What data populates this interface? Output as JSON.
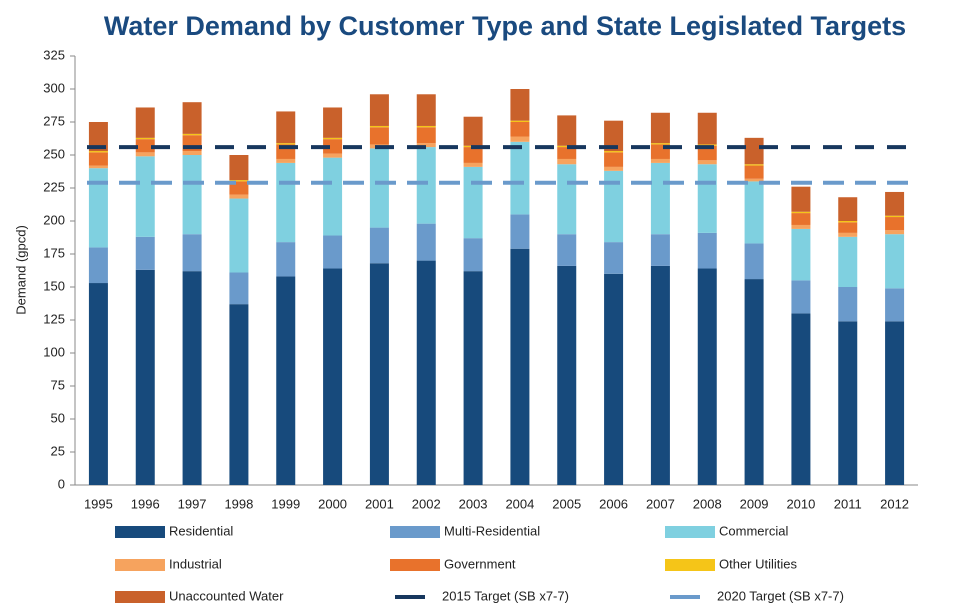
{
  "chart_data": {
    "type": "stacked_bar",
    "title": "Water Demand by Customer Type and State Legislated Targets",
    "y_label": "Demand (gpcd)",
    "categories": [
      "1995",
      "1996",
      "1997",
      "1998",
      "1999",
      "2000",
      "2001",
      "2002",
      "2003",
      "2004",
      "2005",
      "2006",
      "2007",
      "2008",
      "2009",
      "2010",
      "2011",
      "2012"
    ],
    "ylim": [
      0,
      325
    ],
    "yticks": [
      0,
      25,
      50,
      75,
      100,
      125,
      150,
      175,
      200,
      225,
      250,
      275,
      300,
      325
    ],
    "grid": false,
    "legend": "bottom",
    "series": [
      {
        "name": "Residential",
        "color": "#174a7c",
        "values": [
          153,
          163,
          162,
          137,
          158,
          164,
          168,
          170,
          162,
          179,
          166,
          160,
          166,
          164,
          156,
          130,
          124,
          124
        ]
      },
      {
        "name": "Multi-Residential",
        "color": "#6a9acb",
        "values": [
          27,
          25,
          28,
          24,
          26,
          25,
          27,
          28,
          25,
          26,
          24,
          24,
          24,
          27,
          27,
          25,
          26,
          25
        ]
      },
      {
        "name": "Commercial",
        "color": "#7fd0e0",
        "values": [
          60,
          61,
          60,
          56,
          60,
          59,
          60,
          58,
          54,
          55,
          53,
          54,
          54,
          52,
          47,
          39,
          38,
          41
        ]
      },
      {
        "name": "Industrial",
        "color": "#f6a35e",
        "values": [
          2,
          3,
          3,
          3,
          3,
          3,
          3,
          3,
          3,
          4,
          4,
          3,
          3,
          3,
          2,
          3,
          3,
          3
        ]
      },
      {
        "name": "Government",
        "color": "#e8722c",
        "values": [
          10,
          10,
          12,
          10,
          11,
          11,
          13,
          12,
          12,
          11,
          9,
          11,
          11,
          11,
          10,
          9,
          8,
          10
        ]
      },
      {
        "name": "Other Utilities",
        "color": "#f5c518",
        "values": [
          1,
          1,
          1,
          1,
          1,
          1,
          1,
          1,
          1,
          1,
          1,
          1,
          1,
          1,
          1,
          1,
          1,
          1
        ]
      },
      {
        "name": "Unaccounted Water",
        "color": "#c9612b",
        "values": [
          22,
          23,
          24,
          19,
          24,
          23,
          24,
          24,
          22,
          24,
          23,
          23,
          23,
          24,
          20,
          19,
          18,
          18
        ]
      }
    ],
    "lines": [
      {
        "name": "2015 Target (SB x7-7)",
        "color": "#17375e",
        "value": 256
      },
      {
        "name": "2020 Target (SB x7-7)",
        "color": "#6a9acb",
        "value": 229
      }
    ]
  }
}
